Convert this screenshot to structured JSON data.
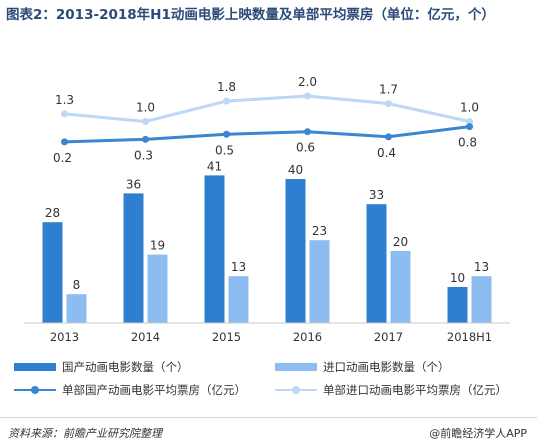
{
  "title": "图表2：2013-2018年H1动画电影上映数量及单部平均票房（单位：亿元，个）",
  "chart_data": {
    "type": "bar",
    "categories": [
      "2013",
      "2014",
      "2015",
      "2016",
      "2017",
      "2018H1"
    ],
    "bar_series": [
      {
        "name": "国产动画电影数量（个）",
        "values": [
          28,
          36,
          41,
          40,
          33,
          10
        ],
        "color": "#2f7fd1"
      },
      {
        "name": "进口动画电影数量（个）",
        "values": [
          8,
          19,
          13,
          23,
          20,
          13
        ],
        "color": "#8dbdf0"
      }
    ],
    "line_series": [
      {
        "name": "单部国产动画电影平均票房（亿元）",
        "values": [
          0.2,
          0.3,
          0.5,
          0.6,
          0.4,
          0.8
        ],
        "color": "#3a86d0"
      },
      {
        "name": "单部进口动画电影平均票房（亿元）",
        "values": [
          1.3,
          1.0,
          1.8,
          2.0,
          1.7,
          1.0
        ],
        "color": "#bcd8f5"
      }
    ]
  },
  "legend": {
    "bar1": "国产动画电影数量（个）",
    "bar2": "进口动画电影数量（个）",
    "line1": "单部国产动画电影平均票房（亿元）",
    "line2": "单部进口动画电影平均票房（亿元）"
  },
  "footer": {
    "source": "资料来源：前瞻产业研究院整理",
    "brand": "@前瞻经济学人APP"
  }
}
